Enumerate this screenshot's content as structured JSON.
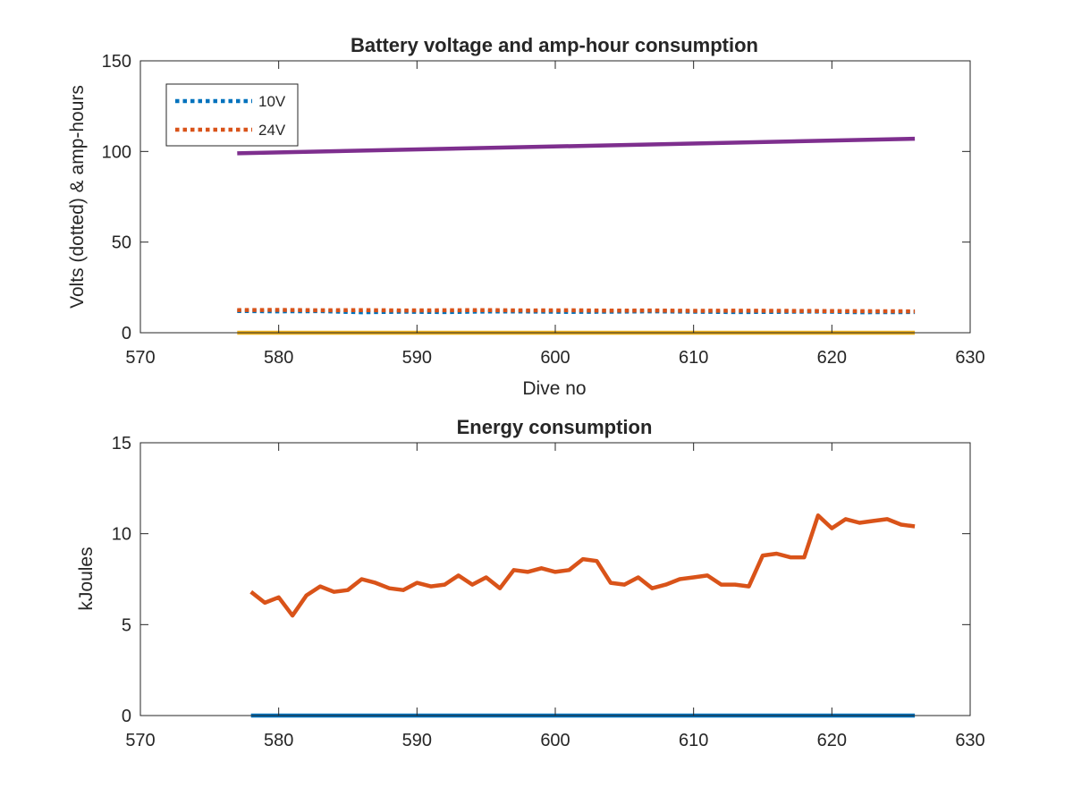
{
  "chart_data": [
    {
      "type": "line",
      "title": "Battery voltage and amp-hour consumption",
      "xlabel": "Dive no",
      "ylabel": "Volts (dotted) & amp-hours",
      "xlim": [
        570,
        630
      ],
      "ylim": [
        0,
        150
      ],
      "xticks": [
        "570",
        "580",
        "590",
        "600",
        "610",
        "620",
        "630"
      ],
      "yticks": [
        "0",
        "50",
        "100",
        "150"
      ],
      "grid": false,
      "legend": {
        "placement": "top-left",
        "entries": [
          "10V",
          "24V"
        ]
      },
      "series": [
        {
          "name": "10V",
          "style": "dotted",
          "color": "#0072BD",
          "x": [
            577,
            580,
            583,
            586,
            589,
            592,
            595,
            598,
            601,
            604,
            607,
            610,
            613,
            616,
            619,
            622,
            626
          ],
          "y": [
            12.0,
            11.8,
            11.9,
            11.3,
            11.6,
            11.4,
            11.7,
            11.7,
            11.5,
            11.6,
            11.8,
            11.6,
            11.4,
            11.5,
            11.7,
            11.3,
            11.4
          ]
        },
        {
          "name": "24V",
          "style": "dotted",
          "color": "#D95319",
          "x": [
            577,
            580,
            583,
            586,
            589,
            592,
            595,
            598,
            601,
            604,
            607,
            610,
            613,
            616,
            619,
            622,
            626
          ],
          "y": [
            12.5,
            12.6,
            12.4,
            12.5,
            12.3,
            12.4,
            12.5,
            12.3,
            12.4,
            12.2,
            12.3,
            12.1,
            12.2,
            12.1,
            12.0,
            11.9,
            11.8
          ]
        },
        {
          "style": "solid",
          "color": "#7E2F8E",
          "x": [
            577,
            626
          ],
          "y": [
            99,
            107
          ]
        },
        {
          "style": "solid",
          "color": "#EDB120",
          "x": [
            577,
            626
          ],
          "y": [
            0,
            0
          ]
        }
      ]
    },
    {
      "type": "line",
      "title": "Energy consumption",
      "xlabel": "",
      "ylabel": "kJoules",
      "xlim": [
        570,
        630
      ],
      "ylim": [
        0,
        15
      ],
      "xticks": [
        "570",
        "580",
        "590",
        "600",
        "610",
        "620",
        "630"
      ],
      "yticks": [
        "0",
        "5",
        "10",
        "15"
      ],
      "grid": false,
      "series": [
        {
          "style": "solid",
          "color": "#D95319",
          "x": [
            578,
            579,
            580,
            581,
            582,
            583,
            584,
            585,
            586,
            587,
            588,
            589,
            590,
            591,
            592,
            593,
            594,
            595,
            596,
            597,
            598,
            599,
            600,
            601,
            602,
            603,
            604,
            605,
            606,
            607,
            608,
            609,
            610,
            611,
            612,
            613,
            614,
            615,
            616,
            617,
            618,
            619,
            620,
            621,
            622,
            623,
            624,
            625,
            626
          ],
          "y": [
            6.8,
            6.2,
            6.5,
            5.5,
            6.6,
            7.1,
            6.8,
            6.9,
            7.5,
            7.3,
            7.0,
            6.9,
            7.3,
            7.1,
            7.2,
            7.7,
            7.2,
            7.6,
            7.0,
            8.0,
            7.9,
            8.1,
            7.9,
            8.0,
            8.6,
            8.5,
            7.3,
            7.2,
            7.6,
            7.0,
            7.2,
            7.5,
            7.6,
            7.7,
            7.2,
            7.2,
            7.1,
            8.8,
            8.9,
            8.7,
            8.7,
            11.0,
            10.3,
            10.8,
            10.6,
            10.7,
            10.8,
            10.5,
            10.4
          ]
        },
        {
          "style": "solid",
          "color": "#0072BD",
          "x": [
            578,
            626
          ],
          "y": [
            0,
            0
          ]
        }
      ]
    }
  ]
}
